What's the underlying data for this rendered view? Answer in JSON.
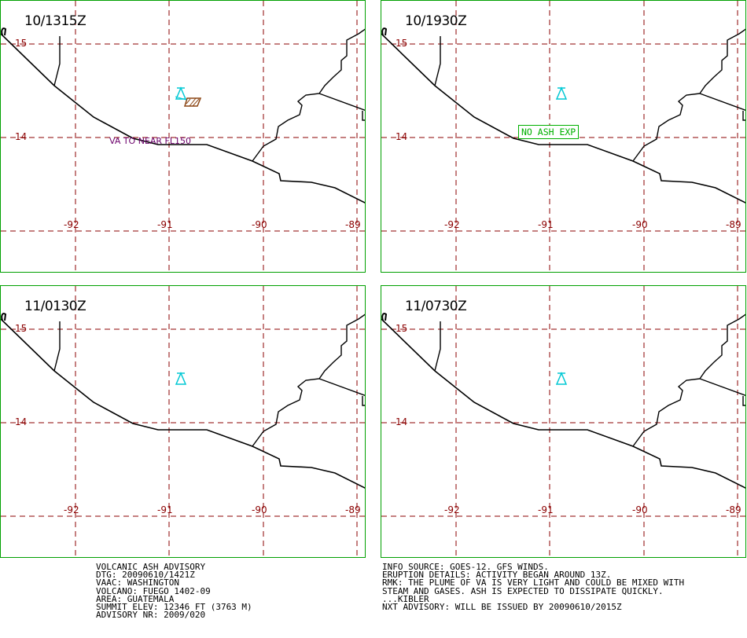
{
  "panels": [
    {
      "time": "10/1315Z",
      "note": "VA TO NEAR FL150"
    },
    {
      "time": "10/1930Z",
      "note": "NO ASH EXP"
    },
    {
      "time": "11/0130Z",
      "note": ""
    },
    {
      "time": "11/0730Z",
      "note": ""
    }
  ],
  "grid": {
    "lon_labels": [
      "-92",
      "-91",
      "-90",
      "-89"
    ],
    "lat_labels": [
      "15",
      "14"
    ]
  },
  "symbols": {
    "volcano_icon": "volcano-triangle-icon",
    "ash_polygon_icon": "ash-cloud-polygon-icon"
  },
  "colors": {
    "frame": "#00a000",
    "grid": "#8b0000",
    "coast": "#000000",
    "volcano": "#00c8d4",
    "ash_polygon": "#8b4513",
    "va_note": "#6b006b",
    "no_ash": "#00b000"
  },
  "advisory_left": [
    "VOLCANIC ASH ADVISORY",
    "DTG: 20090610/1421Z",
    "VAAC: WASHINGTON",
    "VOLCANO: FUEGO 1402-09",
    "AREA: GUATEMALA",
    "SUMMIT ELEV: 12346 FT (3763 M)",
    "ADVISORY NR: 2009/020"
  ],
  "advisory_right": [
    "INFO SOURCE: GOES-12. GFS WINDS.",
    "ERUPTION DETAILS: ACTIVITY BEGAN AROUND 13Z.",
    "RMK: THE PLUME OF VA IS VERY LIGHT AND COULD BE MIXED WITH",
    "STEAM AND GASES. ASH IS EXPECTED TO DISSIPATE QUICKLY.",
    "...KIBLER",
    "NXT ADVISORY: WILL BE ISSUED BY 20090610/2015Z"
  ]
}
